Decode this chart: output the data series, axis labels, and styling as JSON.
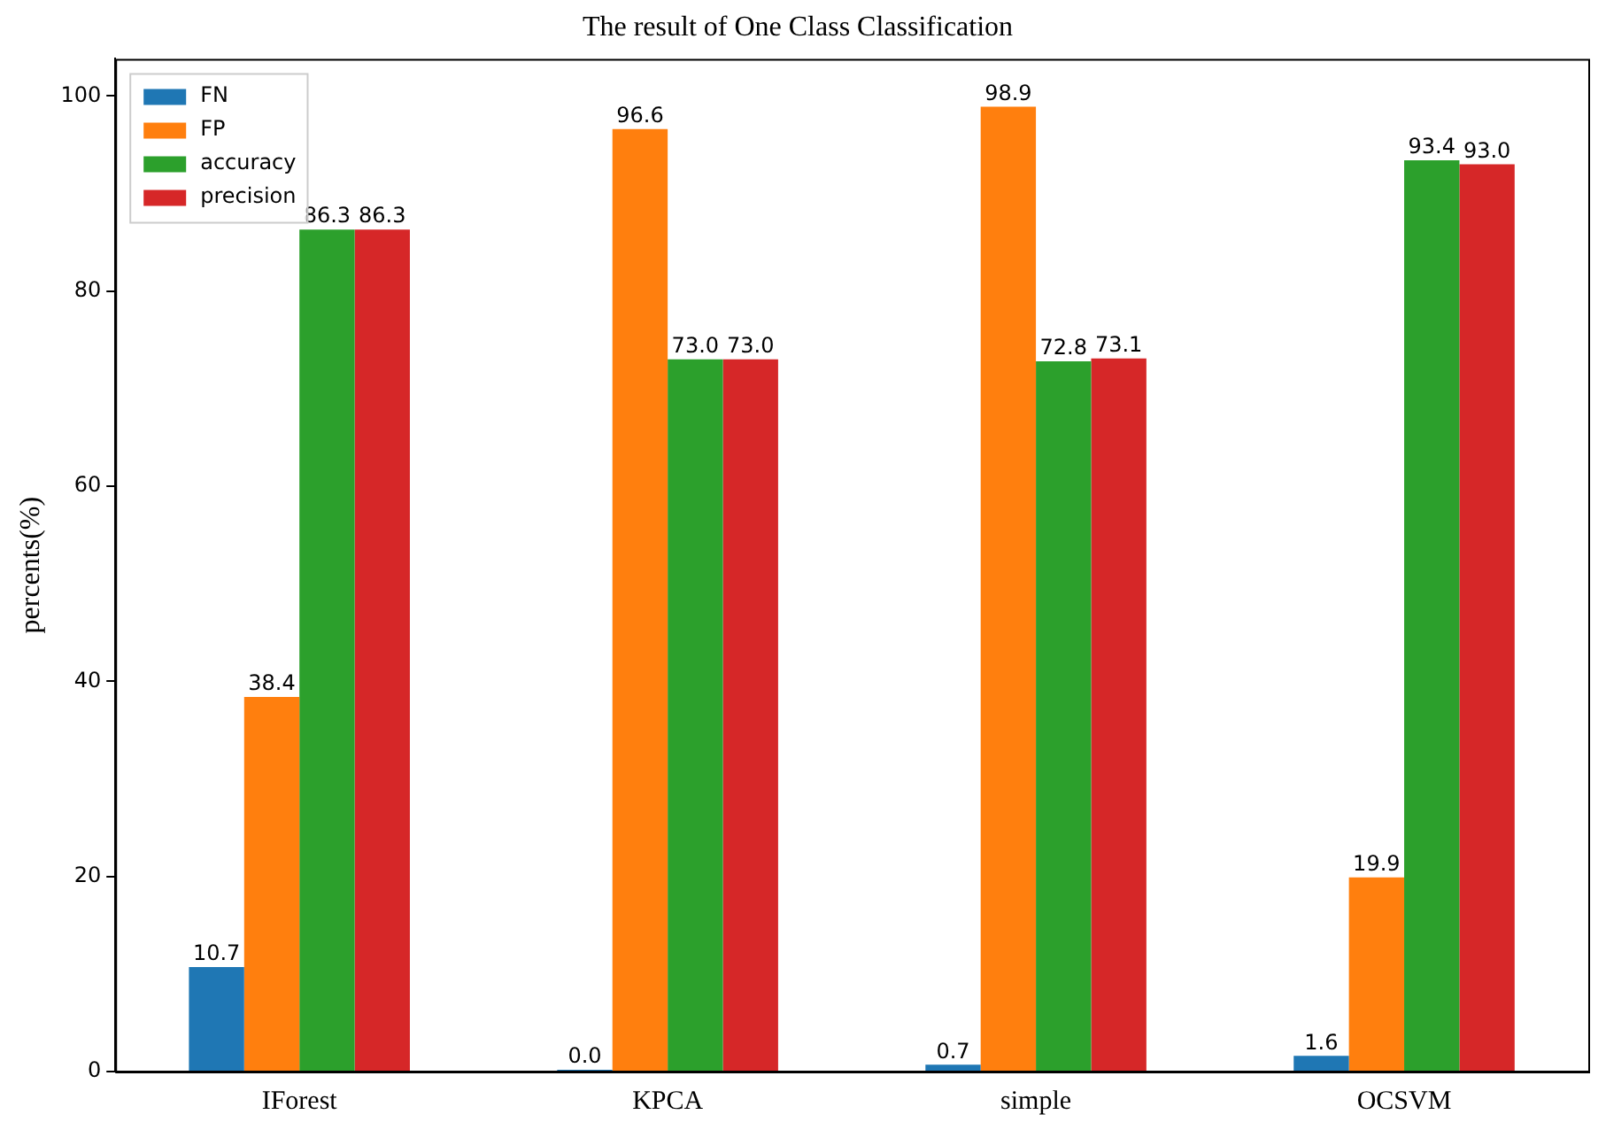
{
  "chart_data": {
    "type": "bar",
    "title": "The result of One Class Classification",
    "ylabel": "percents(%)",
    "categories": [
      "IForest",
      "KPCA",
      "simple",
      "OCSVM"
    ],
    "series": [
      {
        "name": "FN",
        "color": "#1f77b4",
        "values": [
          10.7,
          0.0,
          0.7,
          1.6
        ],
        "value_labels": [
          "10.7",
          "0.0",
          "0.7",
          "1.6"
        ]
      },
      {
        "name": "FP",
        "color": "#ff7f0e",
        "values": [
          38.4,
          96.6,
          98.9,
          19.9
        ],
        "value_labels": [
          "38.4",
          "96.6",
          "98.9",
          "19.9"
        ]
      },
      {
        "name": "accuracy",
        "color": "#2ca02c",
        "values": [
          86.3,
          73.0,
          72.8,
          93.4
        ],
        "value_labels": [
          "86.3",
          "73.0",
          "72.8",
          "93.4"
        ]
      },
      {
        "name": "precision",
        "color": "#d62728",
        "values": [
          86.3,
          73.0,
          73.1,
          93.0
        ],
        "value_labels": [
          "86.3",
          "73.0",
          "73.1",
          "93.0"
        ]
      }
    ],
    "ylim": [
      0,
      103.8
    ],
    "yticks": [
      0,
      20,
      40,
      60,
      80,
      100
    ],
    "grid": false,
    "legend": "top left"
  }
}
